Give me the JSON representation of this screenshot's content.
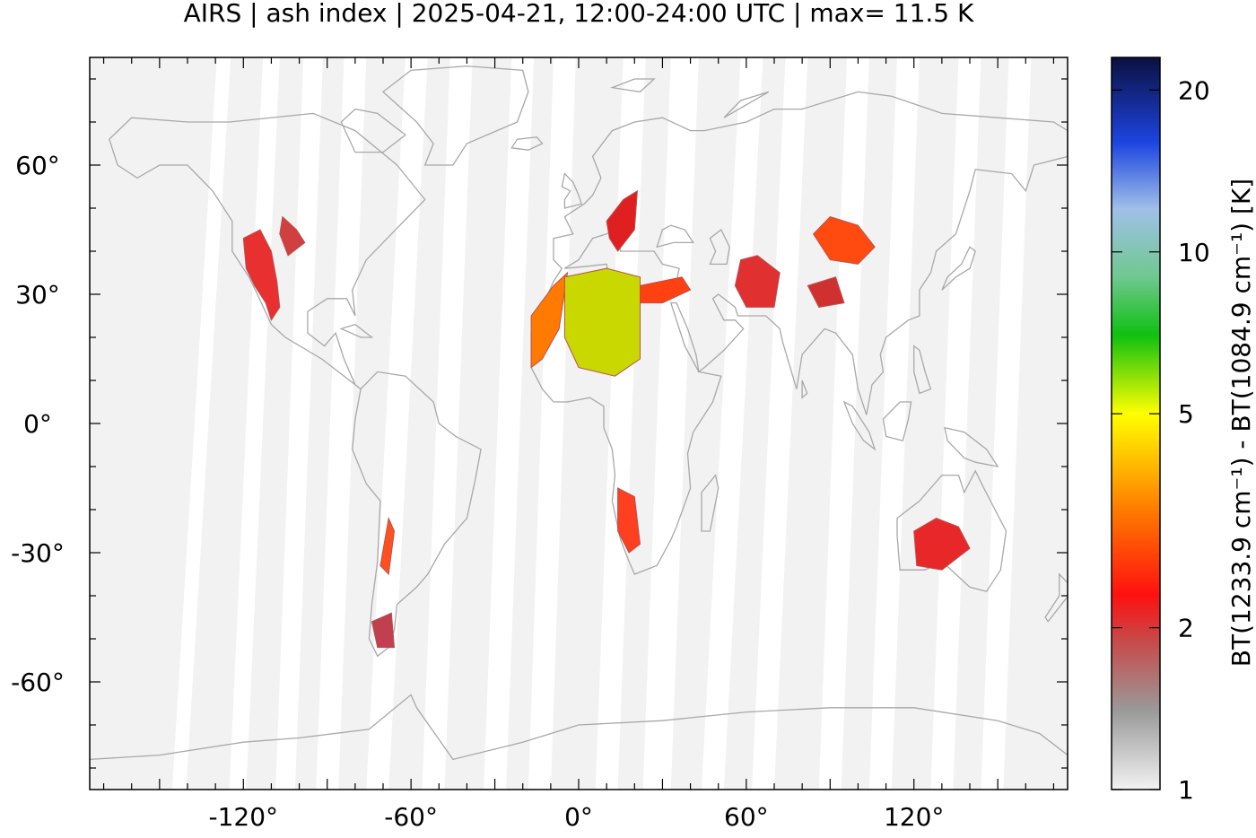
{
  "title": "AIRS | ash index | 2025-04-21, 12:00-24:00 UTC | max= 11.5 K",
  "map": {
    "lon_range": [
      -175,
      175
    ],
    "lat_range": [
      -85,
      85
    ],
    "lon_ticks": [
      {
        "value": -120,
        "label": "-120°"
      },
      {
        "value": -60,
        "label": "-60°"
      },
      {
        "value": 0,
        "label": "0°"
      },
      {
        "value": 60,
        "label": "60°"
      },
      {
        "value": 120,
        "label": "120°"
      }
    ],
    "lat_ticks": [
      {
        "value": 60,
        "label": "60°"
      },
      {
        "value": 30,
        "label": "30°"
      },
      {
        "value": 0,
        "label": "0°"
      },
      {
        "value": -30,
        "label": "-30°"
      },
      {
        "value": -60,
        "label": "-60°"
      }
    ],
    "background_color": "#f2f2f2",
    "coastline_color": "#a8a8a8",
    "swath_gaps": [
      {
        "lon_top": -127,
        "lon_bottom": -143,
        "width": 5
      },
      {
        "lon_top": -110,
        "lon_bottom": -122,
        "width": 6
      },
      {
        "lon_top": -95,
        "lon_bottom": -105,
        "width": 7
      },
      {
        "lon_top": -80,
        "lon_bottom": -90,
        "width": 8
      },
      {
        "lon_top": -58,
        "lon_bottom": -72,
        "width": 8
      },
      {
        "lon_top": -42,
        "lon_bottom": -52,
        "width": 8
      },
      {
        "lon_top": -20,
        "lon_bottom": -30,
        "width": 8
      },
      {
        "lon_top": -5,
        "lon_bottom": -14,
        "width": 8
      },
      {
        "lon_top": 20,
        "lon_bottom": 10,
        "width": 8
      },
      {
        "lon_top": 38,
        "lon_bottom": 28,
        "width": 10
      },
      {
        "lon_top": 62,
        "lon_bottom": 48,
        "width": 8
      },
      {
        "lon_top": 78,
        "lon_bottom": 66,
        "width": 8
      },
      {
        "lon_top": 100,
        "lon_bottom": 90,
        "width": 8
      },
      {
        "lon_top": 118,
        "lon_bottom": 108,
        "width": 8
      },
      {
        "lon_top": 140,
        "lon_bottom": 130,
        "width": 8
      },
      {
        "lon_top": 158,
        "lon_bottom": 148,
        "width": 8
      }
    ],
    "ash_regions": [
      {
        "name": "western-usa",
        "points": [
          [
            -120,
            43
          ],
          [
            -114,
            45
          ],
          [
            -110,
            40
          ],
          [
            -108,
            33
          ],
          [
            -107,
            27
          ],
          [
            -110,
            24
          ],
          [
            -112,
            28
          ],
          [
            -116,
            32
          ],
          [
            -119,
            36
          ]
        ],
        "color": "#e83030"
      },
      {
        "name": "central-usa",
        "points": [
          [
            -106,
            48
          ],
          [
            -101,
            45
          ],
          [
            -98,
            42
          ],
          [
            -104,
            39
          ],
          [
            -107,
            44
          ]
        ],
        "color": "#d04040"
      },
      {
        "name": "sahara-west",
        "points": [
          [
            -17,
            25
          ],
          [
            -9,
            32
          ],
          [
            -4,
            35
          ],
          [
            -7,
            22
          ],
          [
            -13,
            15
          ],
          [
            -17,
            13
          ]
        ],
        "color": "#ff7a00"
      },
      {
        "name": "sahara-core",
        "points": [
          [
            -5,
            34
          ],
          [
            10,
            36
          ],
          [
            22,
            34
          ],
          [
            22,
            15
          ],
          [
            13,
            11
          ],
          [
            0,
            13
          ],
          [
            -5,
            20
          ]
        ],
        "color": "#c8d800"
      },
      {
        "name": "libya-egypt",
        "points": [
          [
            22,
            32
          ],
          [
            37,
            34
          ],
          [
            40,
            31
          ],
          [
            30,
            28
          ],
          [
            22,
            28
          ]
        ],
        "color": "#ff4010"
      },
      {
        "name": "italy-balkans",
        "points": [
          [
            10,
            47
          ],
          [
            16,
            52
          ],
          [
            21,
            54
          ],
          [
            20,
            45
          ],
          [
            14,
            40
          ],
          [
            11,
            43
          ]
        ],
        "color": "#e02020"
      },
      {
        "name": "middle-east",
        "points": [
          [
            58,
            38
          ],
          [
            64,
            39
          ],
          [
            72,
            35
          ],
          [
            70,
            27
          ],
          [
            60,
            27
          ],
          [
            56,
            32
          ]
        ],
        "color": "#e03030"
      },
      {
        "name": "central-asia",
        "points": [
          [
            84,
            44
          ],
          [
            90,
            48
          ],
          [
            100,
            46
          ],
          [
            106,
            41
          ],
          [
            100,
            37
          ],
          [
            90,
            38
          ]
        ],
        "color": "#ff4a10"
      },
      {
        "name": "india",
        "points": [
          [
            82,
            32
          ],
          [
            92,
            34
          ],
          [
            95,
            28
          ],
          [
            86,
            27
          ]
        ],
        "color": "#d03030"
      },
      {
        "name": "andes-north",
        "points": [
          [
            -68,
            -22
          ],
          [
            -66,
            -25
          ],
          [
            -68,
            -35
          ],
          [
            -71,
            -33
          ]
        ],
        "color": "#ff5020"
      },
      {
        "name": "patagonia",
        "points": [
          [
            -74,
            -46
          ],
          [
            -67,
            -44
          ],
          [
            -66,
            -52
          ],
          [
            -72,
            -52
          ]
        ],
        "color": "#c04050"
      },
      {
        "name": "namibia",
        "points": [
          [
            14,
            -15
          ],
          [
            20,
            -17
          ],
          [
            22,
            -28
          ],
          [
            18,
            -30
          ],
          [
            14,
            -25
          ]
        ],
        "color": "#ff4020"
      },
      {
        "name": "australia",
        "points": [
          [
            120,
            -25
          ],
          [
            128,
            -22
          ],
          [
            136,
            -24
          ],
          [
            140,
            -29
          ],
          [
            130,
            -34
          ],
          [
            121,
            -33
          ]
        ],
        "color": "#e82828"
      }
    ]
  },
  "colorbar": {
    "label": "BT(1233.9 cm⁻¹) - BT(1084.9 cm⁻¹) [K]",
    "ticks": [
      {
        "value": 1,
        "label": "1"
      },
      {
        "value": 2,
        "label": "2"
      },
      {
        "value": 5,
        "label": "5"
      },
      {
        "value": 10,
        "label": "10"
      },
      {
        "value": 20,
        "label": "20"
      }
    ],
    "range": [
      1,
      23
    ],
    "scale": "log",
    "stops": [
      {
        "value": 1,
        "color": "#f2f2f2"
      },
      {
        "value": 1.4,
        "color": "#9a9a9a"
      },
      {
        "value": 1.9,
        "color": "#c84848"
      },
      {
        "value": 2.3,
        "color": "#ff1010"
      },
      {
        "value": 3.3,
        "color": "#ff7a00"
      },
      {
        "value": 5,
        "color": "#ffff00"
      },
      {
        "value": 7,
        "color": "#10c010"
      },
      {
        "value": 9,
        "color": "#70c890"
      },
      {
        "value": 12,
        "color": "#a0c0e8"
      },
      {
        "value": 16,
        "color": "#1c44e0"
      },
      {
        "value": 23,
        "color": "#0c1040"
      }
    ]
  }
}
